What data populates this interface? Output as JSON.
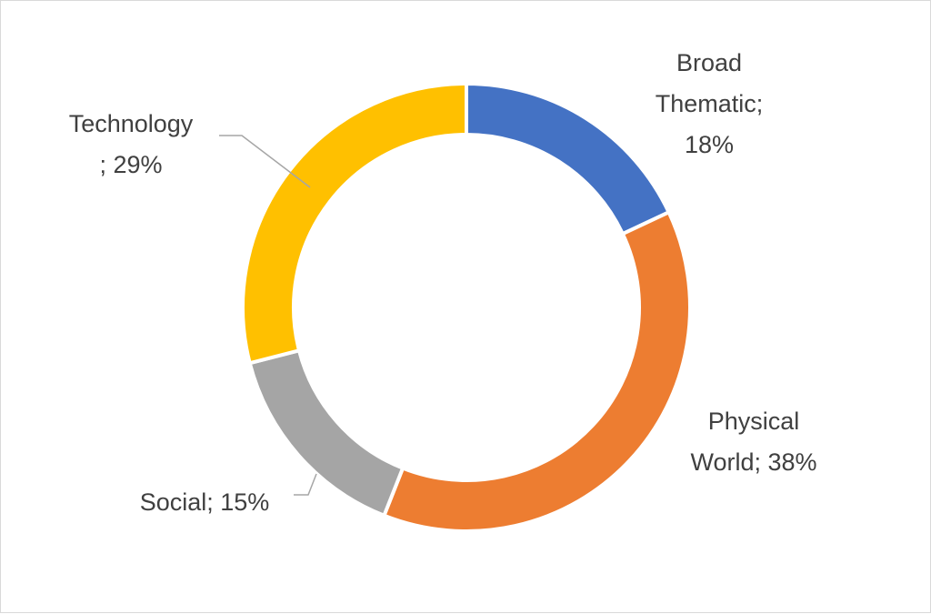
{
  "chart_data": {
    "type": "pie",
    "subtype": "donut",
    "title": "",
    "legend": "none",
    "slices": [
      {
        "name": "Broad Thematic",
        "value": 18,
        "label": "18%",
        "color": "#4472C4"
      },
      {
        "name": "Physical World",
        "value": 38,
        "label": "38%",
        "color": "#ED7D31"
      },
      {
        "name": "Social",
        "value": 15,
        "label": "15%",
        "color": "#A5A5A5"
      },
      {
        "name": "Technology",
        "value": 29,
        "label": "29%",
        "color": "#FFC000"
      }
    ],
    "data_labels": [
      {
        "slice": "Broad Thematic",
        "lines": [
          "Broad",
          "Thematic;",
          "18%"
        ]
      },
      {
        "slice": "Physical World",
        "lines": [
          "Physical",
          "World; 38%"
        ]
      },
      {
        "slice": "Social",
        "lines": [
          "Social; 15%"
        ]
      },
      {
        "slice": "Technology",
        "lines": [
          "Technology",
          "; 29%"
        ]
      }
    ]
  }
}
